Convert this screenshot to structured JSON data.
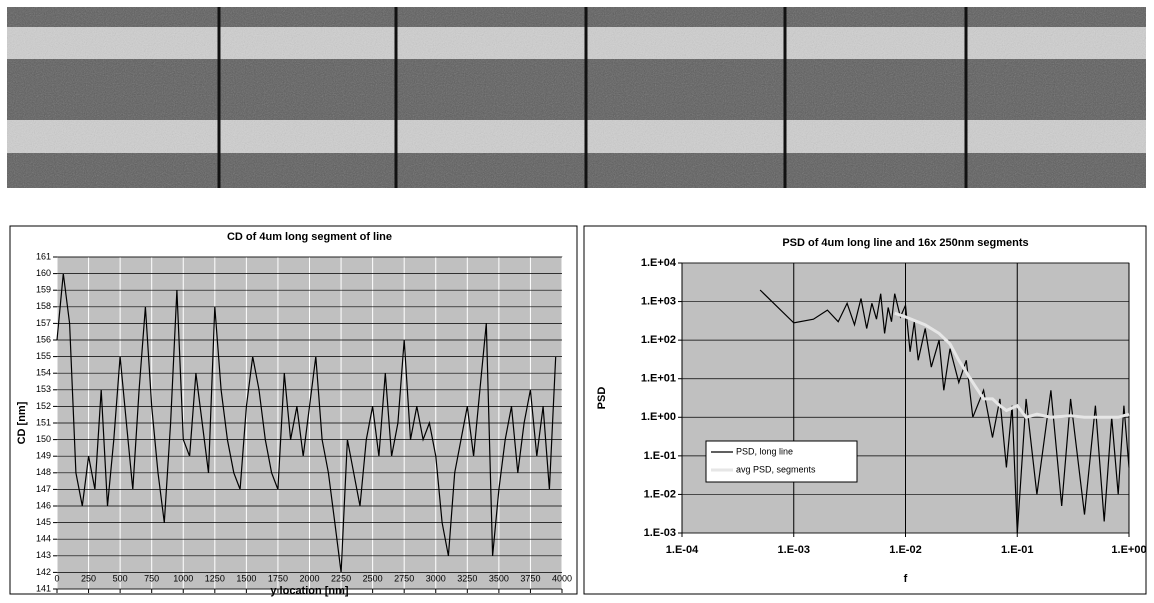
{
  "chart_data": [
    {
      "type": "line",
      "title": "CD of 4um long segment of line",
      "x_label": "y location [nm]",
      "y_label": "CD [nm]",
      "color": "#000000",
      "x": [
        0,
        50,
        100,
        150,
        200,
        250,
        300,
        350,
        400,
        450,
        500,
        550,
        600,
        650,
        700,
        750,
        800,
        850,
        900,
        950,
        1000,
        1050,
        1100,
        1150,
        1200,
        1250,
        1300,
        1350,
        1400,
        1450,
        1500,
        1550,
        1600,
        1650,
        1700,
        1750,
        1800,
        1850,
        1900,
        1950,
        2000,
        2050,
        2100,
        2150,
        2200,
        2250,
        2300,
        2350,
        2400,
        2450,
        2500,
        2550,
        2600,
        2650,
        2700,
        2750,
        2800,
        2850,
        2900,
        2950,
        3000,
        3050,
        3100,
        3150,
        3200,
        3250,
        3300,
        3350,
        3400,
        3450,
        3500,
        3550,
        3600,
        3650,
        3700,
        3750,
        3800,
        3850,
        3900,
        3950
      ],
      "values": [
        156,
        160,
        157,
        148,
        146,
        149,
        147,
        153,
        146,
        150,
        155,
        151,
        147,
        153,
        158,
        152,
        148,
        145,
        151,
        159,
        150,
        149,
        154,
        151,
        148,
        158,
        153,
        150,
        148,
        147,
        152,
        155,
        153,
        150,
        148,
        147,
        154,
        150,
        152,
        149,
        152,
        155,
        150,
        148,
        145,
        142,
        150,
        148,
        146,
        150,
        152,
        149,
        154,
        149,
        151,
        156,
        150,
        152,
        150,
        151,
        149,
        145,
        143,
        148,
        150,
        152,
        149,
        153,
        157,
        143,
        147,
        150,
        152,
        148,
        151,
        153,
        149,
        152,
        147,
        155
      ],
      "xlim": [
        0,
        4000
      ],
      "xticks": [
        0,
        250,
        500,
        750,
        1000,
        1250,
        1500,
        1750,
        2000,
        2250,
        2500,
        2750,
        3000,
        3250,
        3500,
        3750,
        4000
      ],
      "ylim": [
        141,
        161
      ],
      "yticks": [
        141,
        142,
        143,
        144,
        145,
        146,
        147,
        148,
        149,
        150,
        151,
        152,
        153,
        154,
        155,
        156,
        157,
        158,
        159,
        160,
        161
      ],
      "grid": true
    },
    {
      "type": "line",
      "title": "PSD of 4um long line and 16x 250nm segments",
      "x_label": "f",
      "y_label": "PSD",
      "log_x": true,
      "log_y": true,
      "grid": true,
      "legend": "lower left",
      "xlim": [
        0.0001,
        1
      ],
      "xticks": [
        {
          "value": 0.0001,
          "label": "1.E-04"
        },
        {
          "value": 0.001,
          "label": "1.E-03"
        },
        {
          "value": 0.01,
          "label": "1.E-02"
        },
        {
          "value": 0.1,
          "label": "1.E-01"
        },
        {
          "value": 1,
          "label": "1.E+00"
        }
      ],
      "ylim": [
        0.001,
        10000
      ],
      "yticks": [
        {
          "value": 0.001,
          "label": "1.E-03"
        },
        {
          "value": 0.01,
          "label": "1.E-02"
        },
        {
          "value": 0.1,
          "label": "1.E-01"
        },
        {
          "value": 1,
          "label": "1.E+00"
        },
        {
          "value": 10,
          "label": "1.E+01"
        },
        {
          "value": 100,
          "label": "1.E+02"
        },
        {
          "value": 1000,
          "label": "1.E+03"
        },
        {
          "value": 10000,
          "label": "1.E+04"
        }
      ],
      "series": [
        {
          "name": "PSD, long line",
          "color": "#000000",
          "x": [
            0.0005,
            0.001,
            0.0015,
            0.002,
            0.0025,
            0.003,
            0.0035,
            0.004,
            0.0045,
            0.005,
            0.0055,
            0.006,
            0.0065,
            0.007,
            0.0075,
            0.008,
            0.009,
            0.01,
            0.011,
            0.012,
            0.013,
            0.015,
            0.017,
            0.02,
            0.022,
            0.025,
            0.03,
            0.035,
            0.04,
            0.05,
            0.06,
            0.07,
            0.08,
            0.09,
            0.1,
            0.12,
            0.15,
            0.2,
            0.25,
            0.3,
            0.4,
            0.5,
            0.6,
            0.7,
            0.8,
            0.9,
            1
          ],
          "values": [
            2000,
            280,
            350,
            600,
            300,
            900,
            250,
            1200,
            200,
            900,
            350,
            1600,
            150,
            700,
            300,
            1600,
            400,
            800,
            50,
            300,
            30,
            200,
            20,
            100,
            5,
            60,
            8,
            30,
            1,
            5,
            0.3,
            3,
            0.05,
            2,
            0.001,
            3,
            0.01,
            5,
            0.005,
            3,
            0.003,
            2,
            0.002,
            1,
            0.01,
            2,
            0.05
          ]
        },
        {
          "name": "avg PSD, segments",
          "color": "#e6e6e6",
          "x": [
            0.008,
            0.01,
            0.015,
            0.02,
            0.025,
            0.03,
            0.04,
            0.05,
            0.06,
            0.07,
            0.08,
            0.1,
            0.12,
            0.15,
            0.2,
            0.3,
            0.4,
            0.6,
            0.8,
            1
          ],
          "values": [
            500,
            400,
            250,
            150,
            80,
            30,
            8,
            3,
            3,
            2,
            1.5,
            2,
            1,
            1.2,
            1,
            1.1,
            1,
            1,
            1,
            1.2
          ]
        }
      ]
    }
  ]
}
